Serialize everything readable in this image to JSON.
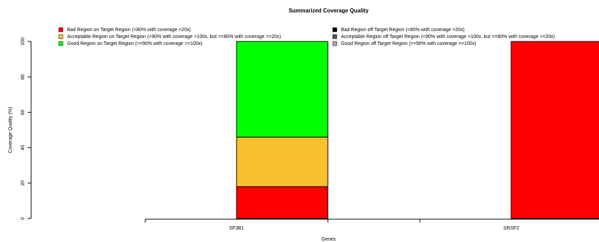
{
  "chart_data": {
    "type": "bar",
    "title": "Summarized Coverage Quality",
    "x_label": "Genes",
    "y_label": "Coverage Quality (%)",
    "categories": [
      "SF3B1",
      "SRSF2"
    ],
    "series": [
      {
        "name": "Bad Region on Target Region (<80% with coverage >20x)",
        "color": "#ff0000",
        "values": [
          18,
          100
        ]
      },
      {
        "name": "Acceptable Region on Target Region (<90% with coverage >100x, but >=80% with coverage >=20x)",
        "color": "#fbc02d",
        "values": [
          28,
          0
        ]
      },
      {
        "name": "Good Region on Target Region (>=90% with coverage >=100x)",
        "color": "#00ff00",
        "values": [
          54,
          0
        ]
      },
      {
        "name": "Bad Region off Target Region (<80% with coverage >20x)",
        "color": "#000000",
        "values": [
          0,
          0
        ]
      },
      {
        "name": "Acceptable Region off Target Region (<90% with coverage >100x, but >=80% with coverage >=20x)",
        "color": "#555555",
        "values": [
          0,
          0
        ]
      },
      {
        "name": "Good Region off Target Region (>=90% with coverage >=100x)",
        "color": "#aaaaaa",
        "values": [
          0,
          0
        ]
      }
    ],
    "ylim": [
      0,
      100
    ],
    "yticks": [
      0,
      20,
      40,
      60,
      80,
      100
    ]
  }
}
